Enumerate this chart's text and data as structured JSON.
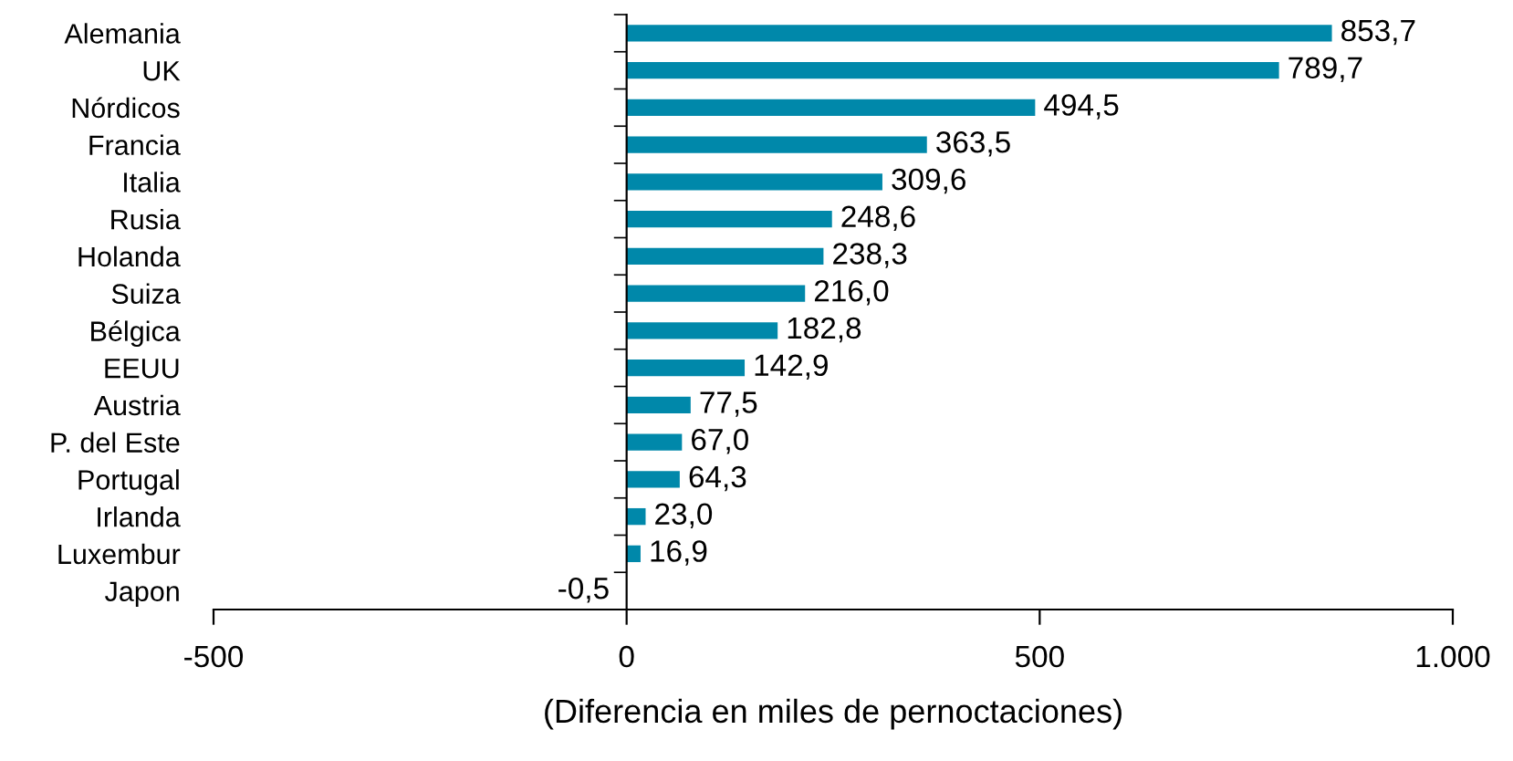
{
  "chart_data": {
    "type": "bar",
    "orientation": "horizontal",
    "xlabel": "(Diferencia en miles de pernoctaciones)",
    "categories": [
      "Alemania",
      "UK",
      "Nórdicos",
      "Francia",
      "Italia",
      "Rusia",
      "Holanda",
      "Suiza",
      "Bélgica",
      "EEUU",
      "Austria",
      "P. del Este",
      "Portugal",
      "Irlanda",
      "Luxembur",
      "Japon"
    ],
    "values": [
      853.7,
      789.7,
      494.5,
      363.5,
      309.6,
      248.6,
      238.3,
      216.0,
      182.8,
      142.9,
      77.5,
      67.0,
      64.3,
      23.0,
      16.9,
      -0.5
    ],
    "value_labels": [
      "853,7",
      "789,7",
      "494,5",
      "363,5",
      "309,6",
      "248,6",
      "238,3",
      "216,0",
      "182,8",
      "142,9",
      "77,5",
      "67,0",
      "64,3",
      "23,0",
      "16,9",
      "-0,5"
    ],
    "color": "#0088aa",
    "xlim": [
      -500,
      1000
    ],
    "xticks": [
      {
        "value": -500,
        "label": "-500"
      },
      0,
      500,
      {
        "value": 1000,
        "label": "1.000"
      }
    ],
    "legend": false
  }
}
